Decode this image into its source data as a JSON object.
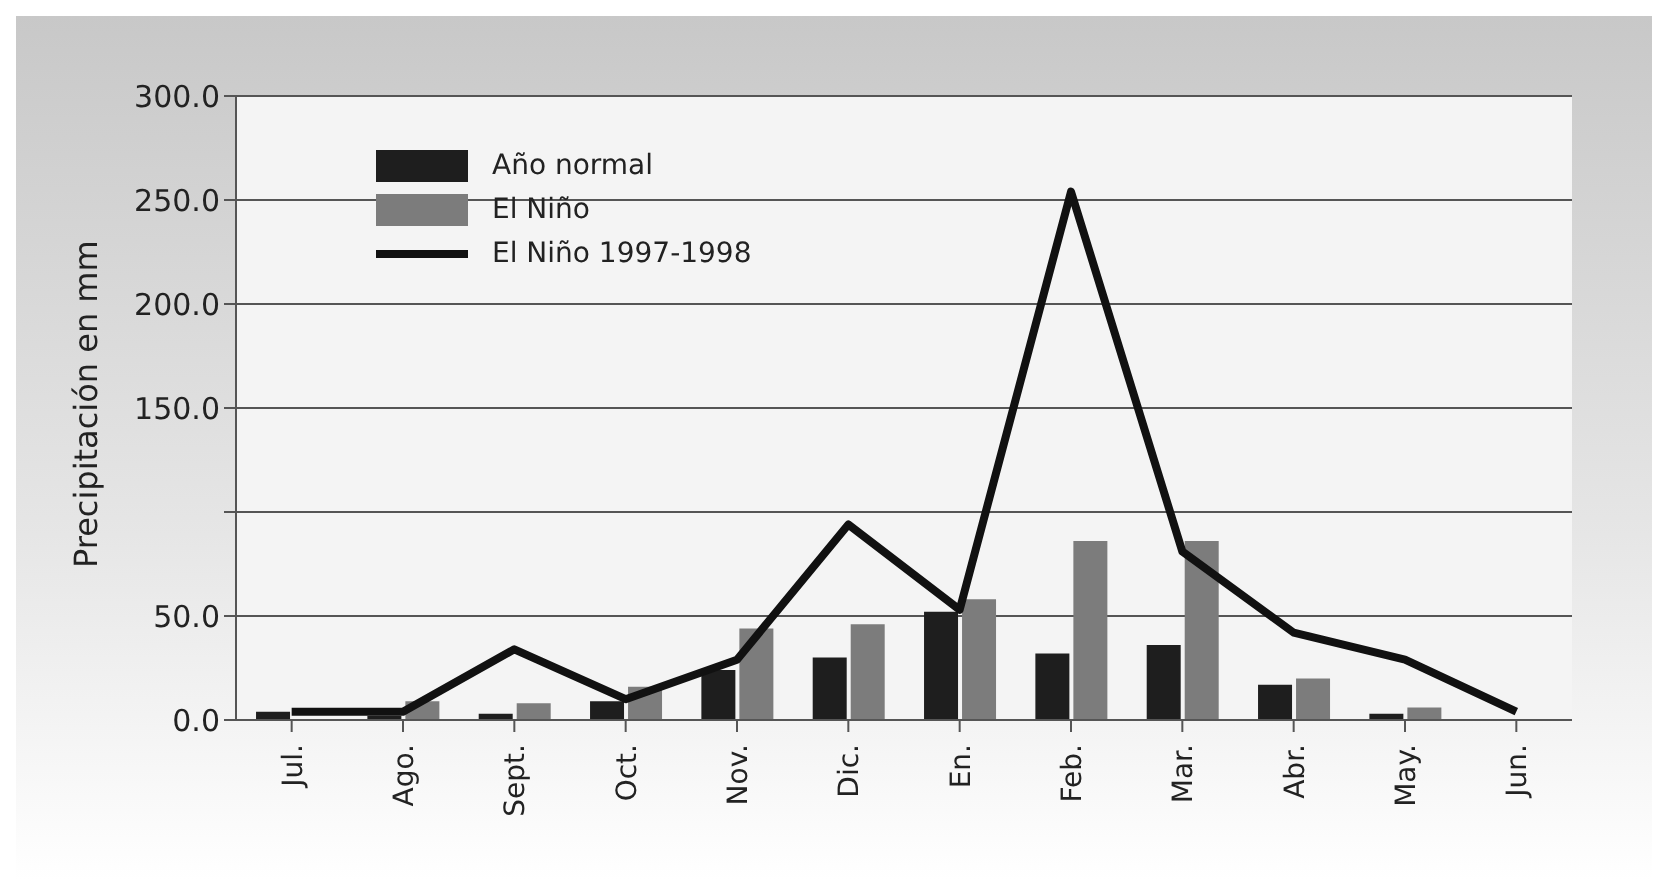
{
  "chart_data": {
    "type": "bar",
    "ylabel": "Precipitación en mm",
    "categories": [
      "Jul.",
      "Ago.",
      "Sept.",
      "Oct.",
      "Nov.",
      "Dic.",
      "En.",
      "Feb.",
      "Mar.",
      "Abr.",
      "May.",
      "Jun."
    ],
    "series": [
      {
        "name": "Año normal",
        "color": "#1e1e1e",
        "values": [
          4,
          2,
          3,
          9,
          24,
          30,
          52,
          32,
          36,
          17,
          3,
          0
        ]
      },
      {
        "name": "El Niño",
        "color": "#7c7c7c",
        "values": [
          null,
          9,
          8,
          16,
          44,
          46,
          58,
          86,
          86,
          20,
          6,
          null
        ]
      },
      {
        "name": "El Niño 1997-1998",
        "type": "line",
        "color": "#111111",
        "values": [
          4,
          4,
          34,
          10,
          29,
          94,
          53,
          254,
          81,
          42,
          29,
          4
        ]
      }
    ],
    "ylim": [
      0,
      300
    ],
    "yticks": [
      {
        "value": 0,
        "label": "0.0"
      },
      {
        "value": 50,
        "label": "50.0"
      },
      {
        "value": 100,
        "label": null
      },
      {
        "value": 150,
        "label": "150.0"
      },
      {
        "value": 200,
        "label": "200.0"
      },
      {
        "value": 250,
        "label": "250.0"
      },
      {
        "value": 300,
        "label": "300.0"
      }
    ],
    "grid": "y",
    "legend": "top left",
    "marker": "none"
  }
}
